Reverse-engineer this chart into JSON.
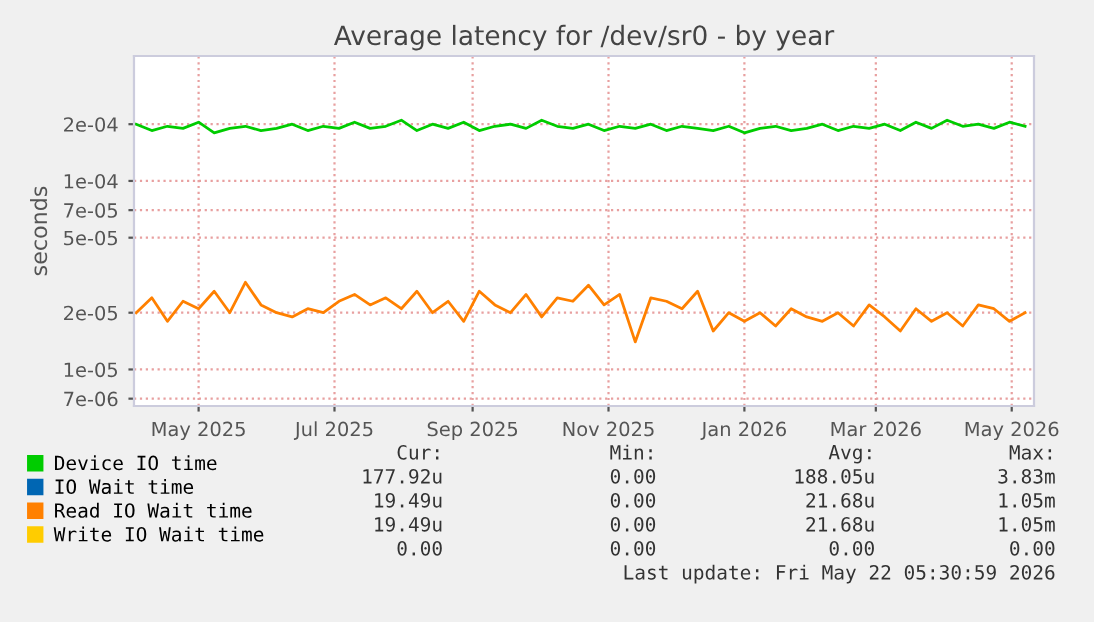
{
  "chart_data": {
    "type": "line",
    "title": "Average latency for /dev/sr0 - by year",
    "ylabel": "seconds",
    "log": "y",
    "grid": true,
    "legend": "bottom left",
    "marker": "none",
    "line_style": "solid",
    "x": [
      "2025-04-03",
      "2025-04-10",
      "2025-04-17",
      "2025-04-24",
      "2025-05-01",
      "2025-05-08",
      "2025-05-15",
      "2025-05-22",
      "2025-05-29",
      "2025-06-05",
      "2025-06-12",
      "2025-06-19",
      "2025-06-26",
      "2025-07-03",
      "2025-07-10",
      "2025-07-17",
      "2025-07-24",
      "2025-07-31",
      "2025-08-07",
      "2025-08-14",
      "2025-08-21",
      "2025-08-28",
      "2025-09-04",
      "2025-09-11",
      "2025-09-18",
      "2025-09-25",
      "2025-10-02",
      "2025-10-09",
      "2025-10-16",
      "2025-10-23",
      "2025-10-30",
      "2025-11-06",
      "2025-11-13",
      "2025-11-20",
      "2025-11-27",
      "2025-12-04",
      "2025-12-11",
      "2025-12-18",
      "2025-12-25",
      "2026-01-01",
      "2026-01-08",
      "2026-01-15",
      "2026-01-22",
      "2026-01-29",
      "2026-02-05",
      "2026-02-12",
      "2026-02-19",
      "2026-02-26",
      "2026-03-05",
      "2026-03-12",
      "2026-03-19",
      "2026-03-26",
      "2026-04-02",
      "2026-04-09",
      "2026-04-16",
      "2026-04-23",
      "2026-04-30",
      "2026-05-07"
    ],
    "xlim": [
      "2025-04-02",
      "2026-05-11"
    ],
    "xticks": [
      {
        "value": "2025-05-01",
        "label": "May 2025"
      },
      {
        "value": "2025-07-01",
        "label": "Jul 2025"
      },
      {
        "value": "2025-09-01",
        "label": "Sep 2025"
      },
      {
        "value": "2025-11-01",
        "label": "Nov 2025"
      },
      {
        "value": "2026-01-01",
        "label": "Jan 2026"
      },
      {
        "value": "2026-03-01",
        "label": "Mar 2026"
      },
      {
        "value": "2026-05-01",
        "label": "May 2026"
      }
    ],
    "ylim": [
      6.4e-06,
      0.00046
    ],
    "yticks": [
      {
        "value": 7e-06,
        "label": "7e-06"
      },
      {
        "value": 1e-05,
        "label": "1e-05"
      },
      {
        "value": 2e-05,
        "label": "2e-05"
      },
      {
        "value": 5e-05,
        "label": "5e-05"
      },
      {
        "value": 7e-05,
        "label": "7e-05"
      },
      {
        "value": 0.0001,
        "label": "1e-04"
      },
      {
        "value": 0.0002,
        "label": "2e-04"
      }
    ],
    "series": [
      {
        "name": "Device IO time",
        "color": "#00cc00",
        "values": [
          0.0002,
          0.000185,
          0.000195,
          0.00019,
          0.000205,
          0.00018,
          0.00019,
          0.000195,
          0.000185,
          0.00019,
          0.0002,
          0.000185,
          0.000195,
          0.00019,
          0.000205,
          0.00019,
          0.000195,
          0.00021,
          0.000185,
          0.0002,
          0.00019,
          0.000205,
          0.000185,
          0.000195,
          0.0002,
          0.00019,
          0.00021,
          0.000195,
          0.00019,
          0.0002,
          0.000185,
          0.000195,
          0.00019,
          0.0002,
          0.000185,
          0.000195,
          0.00019,
          0.000185,
          0.000195,
          0.00018,
          0.00019,
          0.000195,
          0.000185,
          0.00019,
          0.0002,
          0.000185,
          0.000195,
          0.00019,
          0.0002,
          0.000185,
          0.000205,
          0.00019,
          0.00021,
          0.000195,
          0.0002,
          0.00019,
          0.000205,
          0.000195
        ]
      },
      {
        "name": "IO Wait time",
        "color": "#0066b3",
        "values": [
          null,
          null,
          null,
          null,
          null,
          null,
          null,
          null,
          null,
          null,
          null,
          null,
          null,
          null,
          null,
          null,
          null,
          null,
          null,
          null,
          null,
          null,
          null,
          null,
          null,
          null,
          null,
          null,
          null,
          null,
          null,
          null,
          null,
          null,
          null,
          null,
          null,
          null,
          null,
          null,
          null,
          null,
          null,
          null,
          null,
          null,
          null,
          null,
          null,
          null,
          null,
          null,
          null,
          null,
          null,
          null,
          null,
          null
        ]
      },
      {
        "name": "Read IO Wait time",
        "color": "#ff8000",
        "values": [
          2e-05,
          2.4e-05,
          1.8e-05,
          2.3e-05,
          2.1e-05,
          2.6e-05,
          2e-05,
          2.9e-05,
          2.2e-05,
          2e-05,
          1.9e-05,
          2.1e-05,
          2e-05,
          2.3e-05,
          2.5e-05,
          2.2e-05,
          2.4e-05,
          2.1e-05,
          2.6e-05,
          2e-05,
          2.3e-05,
          1.8e-05,
          2.6e-05,
          2.2e-05,
          2e-05,
          2.5e-05,
          1.9e-05,
          2.4e-05,
          2.3e-05,
          2.8e-05,
          2.2e-05,
          2.5e-05,
          1.4e-05,
          2.4e-05,
          2.3e-05,
          2.1e-05,
          2.6e-05,
          1.6e-05,
          2e-05,
          1.8e-05,
          2e-05,
          1.7e-05,
          2.1e-05,
          1.9e-05,
          1.8e-05,
          2e-05,
          1.7e-05,
          2.2e-05,
          1.9e-05,
          1.6e-05,
          2.1e-05,
          1.8e-05,
          2e-05,
          1.7e-05,
          2.2e-05,
          2.1e-05,
          1.8e-05,
          2e-05
        ]
      },
      {
        "name": "Write IO Wait time",
        "color": "#ffcc00",
        "values": [
          null,
          null,
          null,
          null,
          null,
          null,
          null,
          null,
          null,
          null,
          null,
          null,
          null,
          null,
          null,
          null,
          null,
          null,
          null,
          null,
          null,
          null,
          null,
          null,
          null,
          null,
          null,
          null,
          null,
          null,
          null,
          null,
          null,
          null,
          null,
          null,
          null,
          null,
          null,
          null,
          null,
          null,
          null,
          null,
          null,
          null,
          null,
          null,
          null,
          null,
          null,
          null,
          null,
          null,
          null,
          null,
          null,
          null
        ]
      }
    ],
    "annotations": [
      "Cur:",
      "Min:",
      "Avg:",
      "Max:",
      "177.92u",
      "0.00",
      "188.05u",
      "3.83m",
      "19.49u",
      "0.00",
      "21.68u",
      "1.05m",
      "19.49u",
      "0.00",
      "21.68u",
      "1.05m",
      "0.00",
      "0.00",
      "0.00",
      "0.00",
      "Last update: Fri May 22 05:30:59 2026"
    ]
  }
}
